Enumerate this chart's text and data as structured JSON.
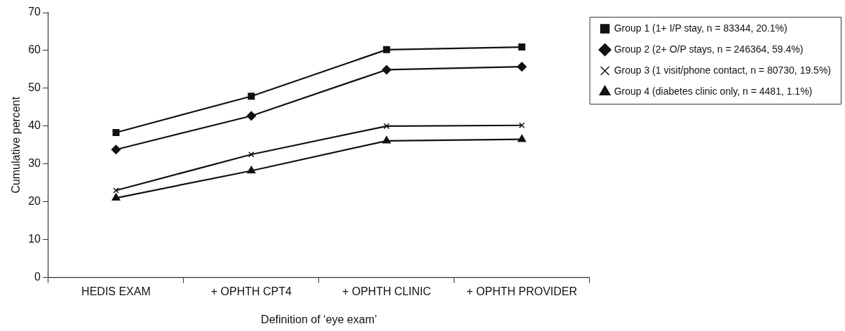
{
  "chart_data": {
    "type": "line",
    "xlabel": "Definition of ‘eye exam’",
    "ylabel": "Cumulative percent",
    "categories": [
      "HEDIS EXAM",
      "+ OPHTH CPT4",
      "+ OPHTH CLINIC",
      "+ OPHTH PROVIDER"
    ],
    "ylim": [
      0,
      70
    ],
    "yticks": [
      0,
      10,
      20,
      30,
      40,
      50,
      60,
      70
    ],
    "grid": false,
    "legend": "top right",
    "series": [
      {
        "name": "Group 1 (1+ I/P stay, n = 83344, 20.1%)",
        "color": "#111111",
        "marker": "square",
        "values": [
          38.3,
          47.9,
          60.2,
          60.9
        ]
      },
      {
        "name": "Group 2 (2+ O/P stays, n = 246364, 59.4%)",
        "color": "#111111",
        "marker": "diamond",
        "values": [
          33.8,
          42.7,
          54.9,
          55.7
        ]
      },
      {
        "name": "Group 3 (1 visit/phone contact, n = 80730, 19.5%)",
        "color": "#111111",
        "marker": "cross",
        "values": [
          23.0,
          32.5,
          40.0,
          40.2
        ]
      },
      {
        "name": "Group 4 (diabetes clinic only, n = 4481, 1.1%)",
        "color": "#111111",
        "marker": "triangle",
        "values": [
          21.0,
          28.2,
          36.1,
          36.5
        ]
      }
    ]
  }
}
